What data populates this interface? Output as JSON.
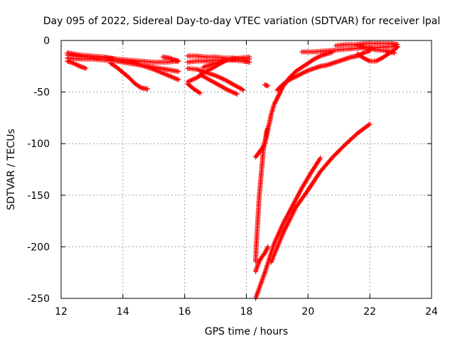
{
  "chart_data": {
    "type": "scatter",
    "title": "Day 095 of 2022, Sidereal Day-to-day VTEC variation (SDTVAR) for receiver lpal",
    "xlabel": "GPS time / hours",
    "ylabel": "SDTVAR / TECUs",
    "xlim": [
      12,
      24
    ],
    "ylim": [
      -250,
      0
    ],
    "xticks": [
      12,
      14,
      16,
      18,
      20,
      22,
      24
    ],
    "yticks": [
      -250,
      -200,
      -150,
      -100,
      -50,
      0
    ],
    "grid": true,
    "marker": "+",
    "marker_color": "#ff0000",
    "series": [
      {
        "x": [
          12.2,
          12.6,
          13.0,
          13.4,
          13.8,
          14.2,
          14.6,
          15.0,
          15.4,
          15.8
        ],
        "y": [
          -12,
          -14,
          -15,
          -16,
          -18,
          -19,
          -20,
          -21,
          -21,
          -20
        ]
      },
      {
        "x": [
          12.2,
          12.6,
          13.0,
          13.4,
          13.8,
          14.2,
          14.6,
          15.0,
          15.4,
          15.8
        ],
        "y": [
          -17,
          -18,
          -18,
          -19,
          -20,
          -22,
          -24,
          -26,
          -28,
          -30
        ]
      },
      {
        "x": [
          12.2,
          12.5,
          12.8,
          13.1,
          13.4,
          13.7
        ],
        "y": [
          -14,
          -15,
          -16,
          -17,
          -17,
          -18
        ]
      },
      {
        "x": [
          12.2,
          12.4,
          12.6,
          12.8
        ],
        "y": [
          -20,
          -22,
          -25,
          -27
        ]
      },
      {
        "x": [
          13.6,
          13.8,
          14.0,
          14.2,
          14.4,
          14.6,
          14.8
        ],
        "y": [
          -22,
          -26,
          -31,
          -36,
          -42,
          -46,
          -47
        ]
      },
      {
        "x": [
          14.2,
          14.6,
          15.0,
          15.4,
          15.8
        ],
        "y": [
          -20,
          -24,
          -28,
          -33,
          -38
        ]
      },
      {
        "x": [
          15.3,
          15.5,
          15.7,
          15.8
        ],
        "y": [
          -16,
          -17,
          -19,
          -20
        ]
      },
      {
        "x": [
          16.1,
          16.4,
          16.7,
          17.0,
          17.3,
          17.6,
          17.9,
          18.1
        ],
        "y": [
          -15,
          -15,
          -16,
          -16,
          -17,
          -17,
          -18,
          -18
        ]
      },
      {
        "x": [
          16.1,
          16.4,
          16.7,
          17.0,
          17.3,
          17.6,
          17.9,
          18.1
        ],
        "y": [
          -21,
          -20,
          -20,
          -19,
          -19,
          -19,
          -20,
          -21
        ]
      },
      {
        "x": [
          16.1,
          16.4,
          16.7,
          17.0,
          17.3,
          17.6,
          17.9
        ],
        "y": [
          -27,
          -28,
          -31,
          -34,
          -38,
          -43,
          -48
        ]
      },
      {
        "x": [
          16.1,
          16.3,
          16.5
        ],
        "y": [
          -42,
          -47,
          -51
        ]
      },
      {
        "x": [
          16.5,
          16.8,
          17.1,
          17.4,
          17.7
        ],
        "y": [
          -33,
          -38,
          -43,
          -48,
          -52
        ]
      },
      {
        "x": [
          16.1,
          16.4,
          16.7,
          17.0,
          17.3
        ],
        "y": [
          -40,
          -36,
          -30,
          -25,
          -20
        ]
      },
      {
        "x": [
          16.6,
          17.0,
          17.4,
          17.8,
          18.1
        ],
        "y": [
          -26,
          -22,
          -19,
          -17,
          -16
        ]
      },
      {
        "x": [
          18.6,
          18.7
        ],
        "y": [
          -43,
          -44
        ]
      },
      {
        "x": [
          18.3,
          18.32,
          18.34,
          18.36,
          18.38,
          18.4,
          18.42,
          18.45,
          18.48,
          18.51,
          18.54,
          18.58,
          18.62,
          18.66,
          18.7,
          18.75,
          18.8,
          18.9,
          19.0,
          19.1,
          19.2,
          19.3,
          19.4,
          19.6,
          19.8,
          20.0,
          20.2,
          20.4,
          20.6,
          20.8
        ],
        "y": [
          -214,
          -200,
          -190,
          -180,
          -170,
          -160,
          -150,
          -140,
          -130,
          -120,
          -110,
          -100,
          -96,
          -88,
          -85,
          -80,
          -72,
          -62,
          -56,
          -50,
          -44,
          -40,
          -36,
          -30,
          -26,
          -22,
          -18,
          -15,
          -13,
          -11
        ]
      },
      {
        "x": [
          18.3,
          18.4,
          18.5,
          18.6,
          18.7
        ],
        "y": [
          -113,
          -109,
          -105,
          -100,
          -86
        ]
      },
      {
        "x": [
          19.0,
          19.2,
          19.4,
          19.6,
          19.8,
          20.0,
          20.2,
          20.4,
          20.6,
          20.8,
          21.0,
          21.2,
          21.4,
          21.6,
          21.8,
          22.0
        ],
        "y": [
          -48,
          -42,
          -38,
          -35,
          -32,
          -29,
          -27,
          -25,
          -24,
          -22,
          -20,
          -18,
          -16,
          -15,
          -12,
          -10
        ]
      },
      {
        "x": [
          19.8,
          20.2,
          20.6,
          21.0,
          21.4,
          21.8,
          22.2,
          22.6,
          22.9
        ],
        "y": [
          -11,
          -11,
          -10,
          -9,
          -8,
          -7,
          -7,
          -6,
          -6
        ]
      },
      {
        "x": [
          20.9,
          21.2,
          21.5,
          21.8,
          22.1,
          22.4,
          22.7,
          22.9
        ],
        "y": [
          -5,
          -4,
          -4,
          -3,
          -3,
          -3,
          -3,
          -4
        ]
      },
      {
        "x": [
          21.6,
          21.8,
          22.0,
          22.2,
          22.4,
          22.6,
          22.8,
          22.9
        ],
        "y": [
          -13,
          -17,
          -20,
          -20,
          -17,
          -13,
          -9,
          -6
        ]
      },
      {
        "x": [
          21.6,
          21.9,
          22.2,
          22.5,
          22.8
        ],
        "y": [
          -5,
          -7,
          -9,
          -10,
          -12
        ]
      },
      {
        "x": [
          18.3,
          18.4,
          18.5,
          18.6,
          18.7
        ],
        "y": [
          -224,
          -215,
          -210,
          -206,
          -200
        ]
      },
      {
        "x": [
          18.3,
          18.6,
          18.9,
          19.2,
          19.5,
          19.8,
          20.1,
          20.4
        ],
        "y": [
          -250,
          -225,
          -197,
          -177,
          -160,
          -143,
          -128,
          -114
        ]
      },
      {
        "x": [
          18.8,
          19.2,
          19.6,
          20.0,
          20.4,
          20.8,
          21.2,
          21.6,
          22.0
        ],
        "y": [
          -215,
          -186,
          -162,
          -145,
          -127,
          -113,
          -101,
          -90,
          -81
        ]
      }
    ]
  }
}
